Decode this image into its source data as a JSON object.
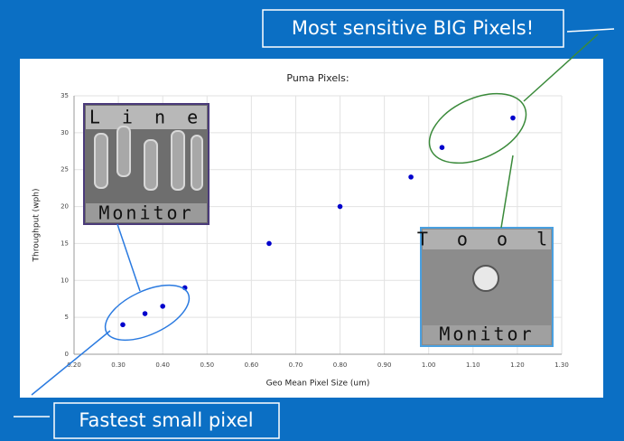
{
  "chart_data": {
    "type": "scatter",
    "title": "Puma Pixels:",
    "x_label": "Geo Mean Pixel Size (um)",
    "y_label": "Throughput (wph)",
    "x": [
      0.31,
      0.36,
      0.4,
      0.45,
      0.64,
      0.8,
      0.96,
      1.03,
      1.19
    ],
    "values": [
      4,
      5.5,
      6.5,
      9,
      15,
      20,
      24,
      28,
      32
    ],
    "color": "#0000cc",
    "xlim": [
      0.2,
      1.3
    ],
    "xticks": [
      {
        "value": 0.2,
        "label": "0.20"
      },
      {
        "value": 0.3,
        "label": "0.30"
      },
      {
        "value": 0.4,
        "label": "0.40"
      },
      {
        "value": 0.5,
        "label": "0.50"
      },
      {
        "value": 0.6,
        "label": "0.60"
      },
      {
        "value": 0.7,
        "label": "0.70"
      },
      {
        "value": 0.8,
        "label": "0.80"
      },
      {
        "value": 0.9,
        "label": "0.90"
      },
      {
        "value": 1.0,
        "label": "1.00"
      },
      {
        "value": 1.1,
        "label": "1.10"
      },
      {
        "value": 1.2,
        "label": "1.20"
      },
      {
        "value": 1.3,
        "label": "1.30"
      }
    ],
    "ylim": [
      0,
      35
    ],
    "yticks": [
      0,
      5,
      10,
      15,
      20,
      25,
      30,
      35
    ],
    "grid": true
  },
  "annotations": {
    "big_pixels": "Most sensitive BIG Pixels!",
    "small_pixel": "Fastest small pixel",
    "line_monitor": {
      "top": "L i n e",
      "bottom": "Monitor"
    },
    "tool_monitor": {
      "top": "T o o l",
      "bottom": "Monitor"
    }
  }
}
